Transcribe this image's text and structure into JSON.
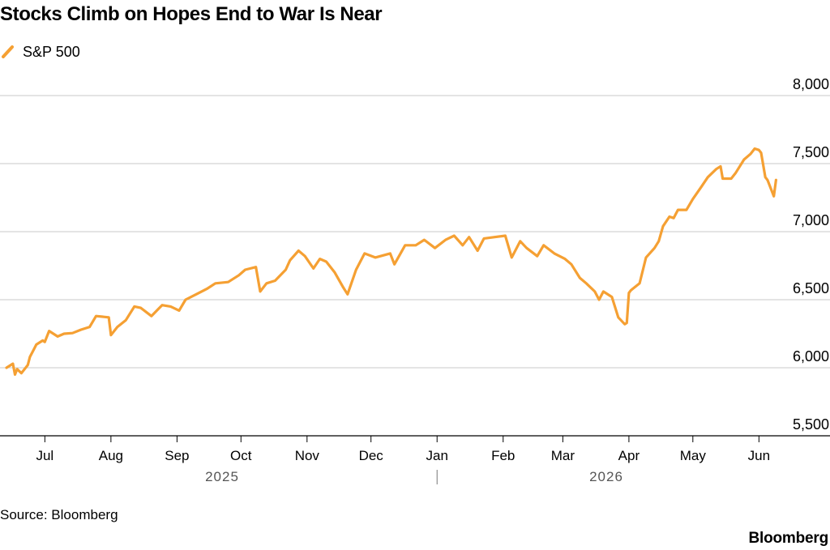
{
  "chart_data": {
    "type": "line",
    "title": "Stocks Climb on Hopes End to War Is Near",
    "series": [
      {
        "name": "S&P 500",
        "color": "#f5a033",
        "x": [
          "2025-06-13",
          "2025-06-16",
          "2025-06-17",
          "2025-06-18",
          "2025-06-20",
          "2025-06-23",
          "2025-06-24",
          "2025-06-26",
          "2025-06-27",
          "2025-06-30",
          "2025-07-01",
          "2025-07-03",
          "2025-07-07",
          "2025-07-10",
          "2025-07-14",
          "2025-07-18",
          "2025-07-22",
          "2025-07-25",
          "2025-07-31",
          "2025-08-01",
          "2025-08-04",
          "2025-08-08",
          "2025-08-12",
          "2025-08-15",
          "2025-08-20",
          "2025-08-25",
          "2025-08-29",
          "2025-09-02",
          "2025-09-05",
          "2025-09-10",
          "2025-09-15",
          "2025-09-19",
          "2025-09-25",
          "2025-09-30",
          "2025-10-03",
          "2025-10-08",
          "2025-10-10",
          "2025-10-13",
          "2025-10-17",
          "2025-10-22",
          "2025-10-24",
          "2025-10-28",
          "2025-10-31",
          "2025-11-04",
          "2025-11-07",
          "2025-11-10",
          "2025-11-14",
          "2025-11-18",
          "2025-11-20",
          "2025-11-24",
          "2025-11-28",
          "2025-12-03",
          "2025-12-10",
          "2025-12-12",
          "2025-12-17",
          "2025-12-22",
          "2025-12-26",
          "2025-12-31",
          "2026-01-05",
          "2026-01-09",
          "2026-01-13",
          "2026-01-16",
          "2026-01-20",
          "2026-01-23",
          "2026-01-28",
          "2026-02-02",
          "2026-02-05",
          "2026-02-09",
          "2026-02-12",
          "2026-02-17",
          "2026-02-20",
          "2026-02-25",
          "2026-03-02",
          "2026-03-05",
          "2026-03-09",
          "2026-03-12",
          "2026-03-16",
          "2026-03-18",
          "2026-03-20",
          "2026-03-24",
          "2026-03-27",
          "2026-03-30",
          "2026-03-31",
          "2026-04-01",
          "2026-04-02",
          "2026-04-06",
          "2026-04-09",
          "2026-04-13",
          "2026-04-15",
          "2026-04-17",
          "2026-04-20",
          "2026-04-22",
          "2026-04-24",
          "2026-04-28",
          "2026-05-01",
          "2026-05-05",
          "2026-05-08",
          "2026-05-12",
          "2026-05-14",
          "2026-05-15",
          "2026-05-19",
          "2026-05-21",
          "2026-05-25",
          "2026-05-28",
          "2026-05-30",
          "2026-06-01",
          "2026-06-02",
          "2026-06-04",
          "2026-06-05",
          "2026-06-08",
          "2026-06-09"
        ],
        "values": [
          6000,
          6030,
          5950,
          5990,
          5960,
          6020,
          6080,
          6140,
          6170,
          6200,
          6190,
          6270,
          6230,
          6250,
          6255,
          6280,
          6300,
          6380,
          6370,
          6240,
          6300,
          6350,
          6450,
          6440,
          6380,
          6460,
          6450,
          6420,
          6500,
          6540,
          6580,
          6620,
          6630,
          6680,
          6720,
          6740,
          6560,
          6620,
          6640,
          6720,
          6790,
          6860,
          6820,
          6730,
          6800,
          6780,
          6700,
          6590,
          6540,
          6720,
          6840,
          6810,
          6840,
          6760,
          6900,
          6900,
          6940,
          6880,
          6940,
          6970,
          6900,
          6960,
          6860,
          6950,
          6960,
          6970,
          6810,
          6930,
          6880,
          6820,
          6900,
          6840,
          6800,
          6760,
          6660,
          6620,
          6560,
          6500,
          6560,
          6520,
          6370,
          6320,
          6330,
          6550,
          6570,
          6620,
          6810,
          6880,
          6930,
          7040,
          7110,
          7100,
          7160,
          7160,
          7240,
          7330,
          7400,
          7460,
          7480,
          7390,
          7390,
          7430,
          7530,
          7570,
          7610,
          7600,
          7580,
          7400,
          7380,
          7260,
          7380
        ]
      }
    ],
    "ylim": [
      5500,
      8000
    ],
    "xlim": [
      "2025-06-13",
      "2026-06-10"
    ],
    "y_ticks": [
      "5,500",
      "6,000",
      "6,500",
      "7,000",
      "7,500",
      "8,000"
    ],
    "x_ticks": [
      {
        "label": "Jul",
        "date": "2025-07-01"
      },
      {
        "label": "Aug",
        "date": "2025-08-01"
      },
      {
        "label": "Sep",
        "date": "2025-09-01"
      },
      {
        "label": "Oct",
        "date": "2025-10-01"
      },
      {
        "label": "Nov",
        "date": "2025-11-01"
      },
      {
        "label": "Dec",
        "date": "2025-12-01"
      },
      {
        "label": "Jan",
        "date": "2026-01-01"
      },
      {
        "label": "Feb",
        "date": "2026-02-01"
      },
      {
        "label": "Mar",
        "date": "2026-03-01"
      },
      {
        "label": "Apr",
        "date": "2026-04-01"
      },
      {
        "label": "May",
        "date": "2026-05-01"
      },
      {
        "label": "Jun",
        "date": "2026-06-01"
      }
    ],
    "year_labels": [
      "2025",
      "2026"
    ],
    "grid": "horizontal",
    "legend": "top-left"
  },
  "source": "Source: Bloomberg",
  "brand": "Bloomberg",
  "colors": {
    "line": "#f5a033",
    "grid": "#c8c8c8",
    "axis": "#000000",
    "year_label": "#555555"
  }
}
